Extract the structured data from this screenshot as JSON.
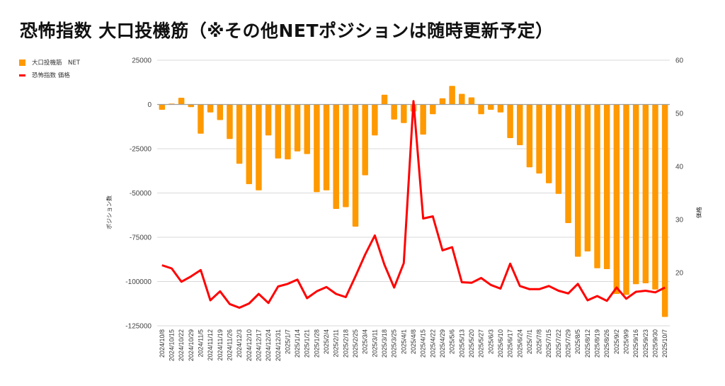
{
  "chart_data": {
    "type": "bar+line",
    "title": "恐怖指数 大口投機筋（※その他NETポジションは随時更新予定）",
    "legend_position": "top-left",
    "legend": [
      {
        "name": "大口投機筋　NET",
        "color": "#ff9900",
        "kind": "bar"
      },
      {
        "name": "恐怖指数 価格",
        "color": "#ff0000",
        "kind": "line"
      }
    ],
    "ylabel_left": "ポジション数",
    "ylabel_right": "価格",
    "ylim_left": [
      -125000,
      25000
    ],
    "yticks_left": [
      "25000",
      "0",
      "-25000",
      "-50000",
      "-75000",
      "-100000",
      "-125000"
    ],
    "ylim_right": [
      10,
      60
    ],
    "yticks_right": [
      "60",
      "50",
      "40",
      "30",
      "20"
    ],
    "grid": true,
    "categories": [
      "2024/10/8",
      "2024/10/15",
      "2024/10/22",
      "2024/10/29",
      "2024/11/5",
      "2024/11/12",
      "2024/11/19",
      "2024/11/26",
      "2024/12/3",
      "2024/12/10",
      "2024/12/17",
      "2024/12/24",
      "2024/12/31",
      "2025/1/7",
      "2025/1/14",
      "2025/1/21",
      "2025/1/28",
      "2025/2/4",
      "2025/2/11",
      "2025/2/18",
      "2025/2/25",
      "2025/3/4",
      "2025/3/11",
      "2025/3/18",
      "2025/3/25",
      "2025/4/1",
      "2025/4/8",
      "2025/4/15",
      "2025/4/22",
      "2025/4/29",
      "2025/5/6",
      "2025/5/13",
      "2025/5/20",
      "2025/5/27",
      "2025/6/3",
      "2025/6/10",
      "2025/6/17",
      "2025/6/24",
      "2025/7/1",
      "2025/7/8",
      "2025/7/15",
      "2025/7/22",
      "2025/7/29",
      "2025/8/5",
      "2025/8/12",
      "2025/8/19",
      "2025/8/26",
      "2025/9/2",
      "2025/9/9",
      "2025/9/16",
      "2025/9/23",
      "2025/9/30",
      "2025/10/7"
    ],
    "series": [
      {
        "name": "大口投機筋　NET",
        "axis": "left",
        "type": "bar",
        "color": "#ff9900",
        "values": [
          -3000,
          500,
          3800,
          -1500,
          -16500,
          -4500,
          -8800,
          -19500,
          -33500,
          -45000,
          -48500,
          -17500,
          -30500,
          -31000,
          -26500,
          -28000,
          -49500,
          -48500,
          -59000,
          -58000,
          -69000,
          -40000,
          -17500,
          5500,
          -8500,
          -10500,
          -4000,
          -17000,
          -5500,
          3500,
          10500,
          6000,
          4000,
          -5500,
          -3000,
          -4500,
          -19000,
          -23000,
          -35500,
          -39000,
          -44500,
          -50500,
          -67000,
          -86000,
          -83000,
          -92500,
          -93000,
          -107000,
          -107500,
          -101500,
          -101000,
          -104500,
          -120000
        ]
      },
      {
        "name": "恐怖指数 価格",
        "axis": "right",
        "type": "line",
        "color": "#ff0000",
        "values": [
          21.4,
          20.8,
          18.3,
          19.3,
          20.5,
          14.8,
          16.5,
          14.1,
          13.4,
          14.2,
          16.0,
          14.3,
          17.4,
          17.9,
          18.7,
          15.2,
          16.5,
          17.3,
          16.0,
          15.4,
          19.3,
          23.4,
          27.0,
          21.5,
          17.2,
          21.8,
          52.3,
          30.2,
          30.6,
          24.2,
          24.8,
          18.2,
          18.1,
          19.0,
          17.7,
          17.0,
          21.7,
          17.5,
          16.9,
          16.9,
          17.5,
          16.6,
          16.1,
          17.9,
          14.8,
          15.6,
          14.7,
          17.2,
          15.1,
          16.4,
          16.6,
          16.3,
          17.2
        ]
      }
    ]
  }
}
